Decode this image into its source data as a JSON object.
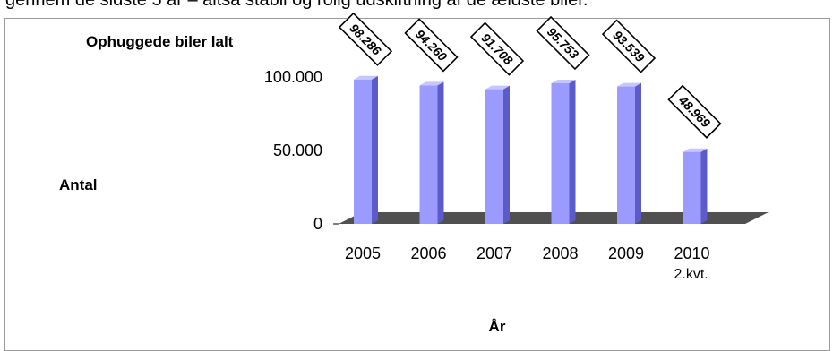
{
  "caption": {
    "text": "gennem de sidste 5 år – altså stabil og rolig udskiftning af de ældste biler."
  },
  "chart_data": {
    "type": "bar",
    "title": "Ophuggede biler lalt",
    "xlabel": "År",
    "ylabel": "Antal",
    "categories": [
      "2005",
      "2006",
      "2007",
      "2008",
      "2009",
      "2010\n2.kvt."
    ],
    "values": [
      98286,
      94260,
      91708,
      95753,
      93539,
      48969
    ],
    "data_labels": [
      "98.286",
      "94.260",
      "91.708",
      "95.753",
      "93.539",
      "48.969"
    ],
    "yticks": [
      0,
      50000,
      100000
    ],
    "ytick_labels": [
      "0",
      "50.000",
      "100.000"
    ],
    "ylim": [
      0,
      100000
    ],
    "grid": false,
    "legend": "none",
    "style": "3d-bars",
    "colors": {
      "bar_front": "#9b9bff",
      "bar_side": "#5c5cc8",
      "bar_top": "#c6c6ff",
      "floor": "#505050"
    }
  }
}
